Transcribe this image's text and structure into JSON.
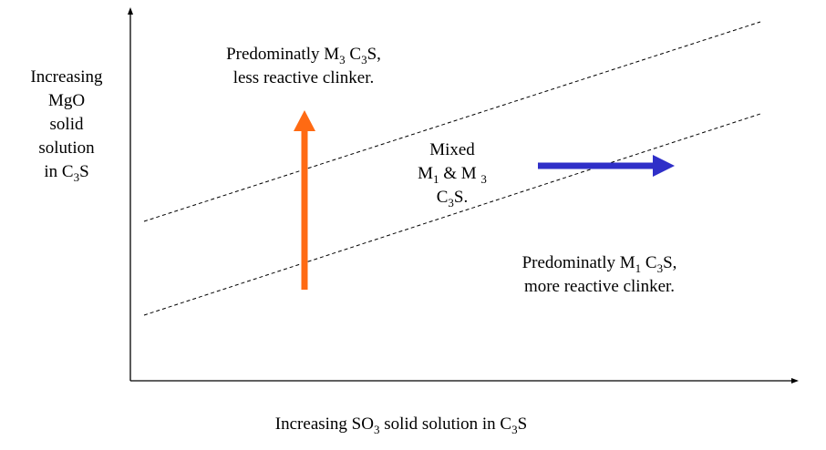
{
  "y_axis_label": {
    "line1": "Increasing",
    "line2": "MgO",
    "line3": "solid",
    "line4": "solution",
    "line5_pre": "in C",
    "line5_sub": "3",
    "line5_post": "S"
  },
  "x_axis_label": {
    "pre": "Increasing SO",
    "sub1": "3",
    "mid": " solid solution in C",
    "sub2": "3",
    "post": "S"
  },
  "region_upper": {
    "l1_pre": "Predominatly M",
    "l1_sub1": "3",
    "l1_mid": " C",
    "l1_sub2": "3",
    "l1_post": "S,",
    "l2": "less reactive clinker."
  },
  "region_mixed": {
    "l1": "Mixed",
    "l2_pre": "M",
    "l2_sub1": "1",
    "l2_mid": " & M ",
    "l2_sub2": "3",
    "l3_pre": "C",
    "l3_sub": "3",
    "l3_post": "S."
  },
  "region_lower": {
    "l1_pre": "Predominatly M",
    "l1_sub1": "1",
    "l1_mid": " C",
    "l1_sub2": "3",
    "l1_post": "S,",
    "l2": "more reactive clinker."
  },
  "colors": {
    "up_arrow": "#ff6a13",
    "right_arrow": "#2f2fc8",
    "axes": "#000000",
    "boundary_lines": "#000000"
  }
}
